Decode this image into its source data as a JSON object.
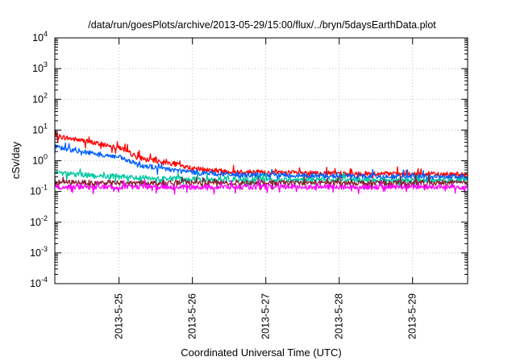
{
  "chart_data": {
    "type": "line",
    "title": "/data/run/goesPlots/archive/2013-05-29/15:00/flux/../bryn/5daysEarthData.plot",
    "xlabel": "Coordinated Universal Time (UTC)",
    "ylabel": "cSv/day",
    "y_scale": "log",
    "ylim": [
      0.0001,
      10000
    ],
    "xlim": [
      "2013-05-24 03:00",
      "2013-05-29 18:00"
    ],
    "grid": true,
    "legend": "none",
    "x_ticks": [
      "2013-5-25",
      "2013-5-26",
      "2013-5-27",
      "2013-5-28",
      "2013-5-29"
    ],
    "y_ticks": [
      {
        "value": 0.0001,
        "base": "10",
        "exp": "-4"
      },
      {
        "value": 0.001,
        "base": "10",
        "exp": "-3"
      },
      {
        "value": 0.01,
        "base": "10",
        "exp": "-2"
      },
      {
        "value": 0.1,
        "base": "10",
        "exp": "-1"
      },
      {
        "value": 1,
        "base": "10",
        "exp": "0"
      },
      {
        "value": 10,
        "base": "10",
        "exp": "1"
      },
      {
        "value": 100,
        "base": "10",
        "exp": "2"
      },
      {
        "value": 1000,
        "base": "10",
        "exp": "3"
      },
      {
        "value": 10000,
        "base": "10",
        "exp": "4"
      }
    ],
    "series": [
      {
        "color": "#ff0000",
        "x": [
          "2013-05-24 03:00",
          "2013-05-24 12:00",
          "2013-05-24 18:00",
          "2013-05-25 00:00",
          "2013-05-25 06:00",
          "2013-05-25 12:00",
          "2013-05-25 18:00",
          "2013-05-26 00:00",
          "2013-05-26 12:00",
          "2013-05-27 00:00",
          "2013-05-27 12:00",
          "2013-05-28 00:00",
          "2013-05-28 12:00",
          "2013-05-29 00:00",
          "2013-05-29 18:00"
        ],
        "y": [
          6.5,
          4.5,
          3.5,
          2.8,
          1.3,
          1.0,
          0.8,
          0.55,
          0.45,
          0.42,
          0.4,
          0.38,
          0.38,
          0.36,
          0.36
        ]
      },
      {
        "color": "#0060ff",
        "x": [
          "2013-05-24 03:00",
          "2013-05-24 12:00",
          "2013-05-24 18:00",
          "2013-05-25 00:00",
          "2013-05-25 06:00",
          "2013-05-25 12:00",
          "2013-05-25 18:00",
          "2013-05-26 00:00",
          "2013-05-26 12:00",
          "2013-05-27 00:00",
          "2013-05-27 12:00",
          "2013-05-28 00:00",
          "2013-05-28 12:00",
          "2013-05-29 00:00",
          "2013-05-29 18:00"
        ],
        "y": [
          2.8,
          2.0,
          1.6,
          1.3,
          0.75,
          0.6,
          0.5,
          0.42,
          0.36,
          0.34,
          0.33,
          0.32,
          0.31,
          0.3,
          0.3
        ]
      },
      {
        "color": "#00c8a0",
        "x": [
          "2013-05-24 03:00",
          "2013-05-24 12:00",
          "2013-05-25 00:00",
          "2013-05-25 12:00",
          "2013-05-26 00:00",
          "2013-05-27 00:00",
          "2013-05-28 00:00",
          "2013-05-29 00:00",
          "2013-05-29 18:00"
        ],
        "y": [
          0.42,
          0.34,
          0.3,
          0.27,
          0.25,
          0.24,
          0.24,
          0.23,
          0.23
        ]
      },
      {
        "color": "#8b2030",
        "x": [
          "2013-05-24 03:00",
          "2013-05-25 00:00",
          "2013-05-26 00:00",
          "2013-05-27 00:00",
          "2013-05-28 00:00",
          "2013-05-29 00:00",
          "2013-05-29 18:00"
        ],
        "y": [
          0.2,
          0.19,
          0.19,
          0.19,
          0.19,
          0.19,
          0.19
        ]
      },
      {
        "color": "#ff00ff",
        "x": [
          "2013-05-24 03:00",
          "2013-05-25 00:00",
          "2013-05-26 00:00",
          "2013-05-27 00:00",
          "2013-05-28 00:00",
          "2013-05-29 00:00",
          "2013-05-29 18:00"
        ],
        "y": [
          0.14,
          0.14,
          0.14,
          0.14,
          0.14,
          0.14,
          0.14
        ]
      }
    ]
  }
}
